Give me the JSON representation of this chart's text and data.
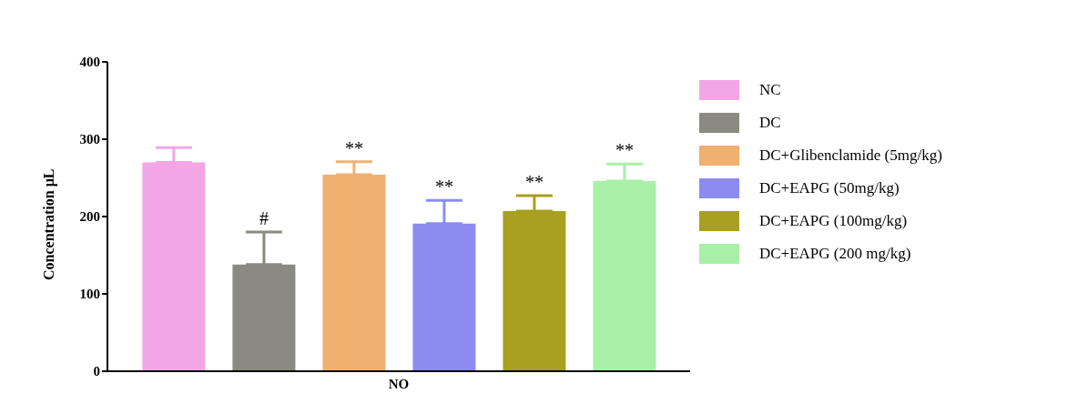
{
  "chart_data": {
    "type": "bar",
    "ylabel": "Concentration μL",
    "categories": [
      "NO"
    ],
    "series": [
      {
        "name": "NC",
        "color": "#f2a6e6",
        "values": [
          270
        ],
        "errors": [
          [
            270,
            289
          ]
        ]
      },
      {
        "name": "DC",
        "color": "#8a8a80",
        "values": [
          138
        ],
        "errors": [
          [
            138,
            180
          ]
        ]
      },
      {
        "name": "DC+Glibenclamide (5mg/kg)",
        "color": "#f0b070",
        "values": [
          254
        ],
        "errors": [
          [
            254,
            271
          ]
        ]
      },
      {
        "name": "DC+EAPG (50mg/kg)",
        "color": "#8c8cf0",
        "values": [
          191
        ],
        "errors": [
          [
            191,
            221
          ]
        ]
      },
      {
        "name": "DC+EAPG (100mg/kg)",
        "color": "#a8a020",
        "values": [
          207
        ],
        "errors": [
          [
            207,
            227
          ]
        ]
      },
      {
        "name": "DC+EAPG (200 mg/kg)",
        "color": "#a8f0a8",
        "values": [
          246
        ],
        "errors": [
          [
            246,
            268
          ]
        ]
      }
    ],
    "annotations": [
      "#",
      "**",
      "**",
      "**",
      "**"
    ],
    "ylim": [
      0,
      400
    ],
    "yticks": [
      0,
      100,
      200,
      300,
      400
    ],
    "legend": "right"
  }
}
